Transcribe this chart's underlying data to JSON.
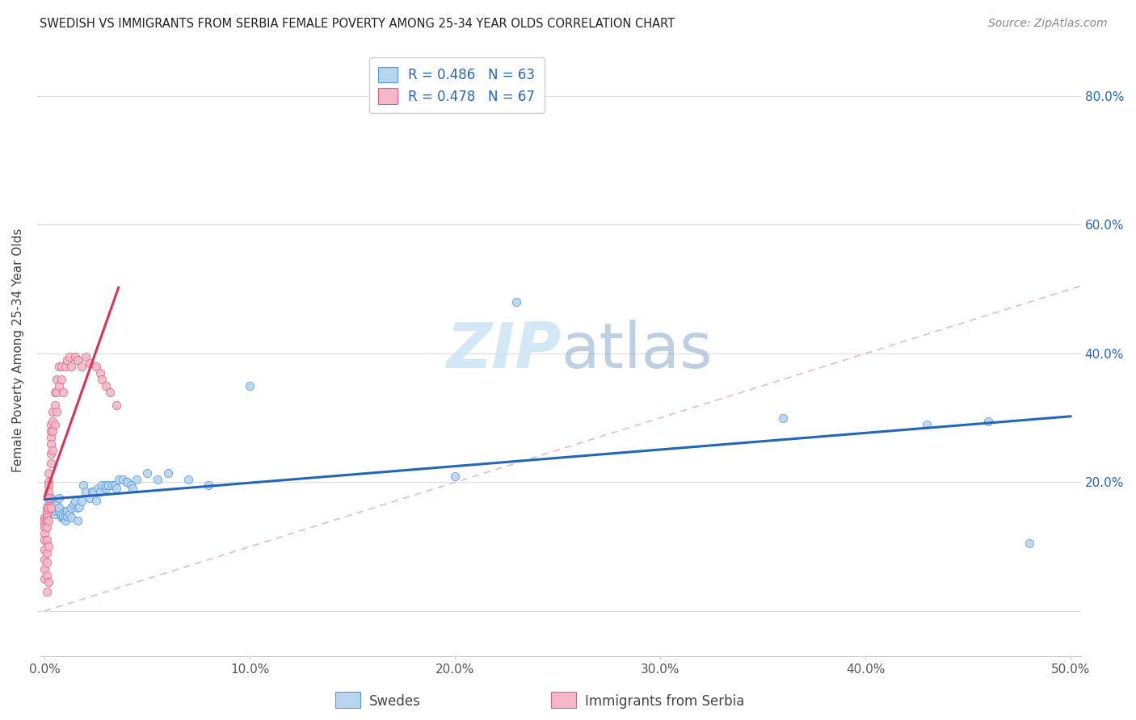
{
  "title": "SWEDISH VS IMMIGRANTS FROM SERBIA FEMALE POVERTY AMONG 25-34 YEAR OLDS CORRELATION CHART",
  "source": "Source: ZipAtlas.com",
  "ylabel": "Female Poverty Among 25-34 Year Olds",
  "xmin": -0.002,
  "xmax": 0.505,
  "ymin": -0.07,
  "ymax": 0.88,
  "xticks": [
    0.0,
    0.1,
    0.2,
    0.3,
    0.4,
    0.5
  ],
  "xticklabels": [
    "0.0%",
    "10.0%",
    "20.0%",
    "30.0%",
    "40.0%",
    "50.0%"
  ],
  "yticks": [
    0.0,
    0.2,
    0.4,
    0.6,
    0.8
  ],
  "yticklabels": [
    "",
    "20.0%",
    "40.0%",
    "60.0%",
    "80.0%"
  ],
  "legend_R_blue": "R = 0.486",
  "legend_N_blue": "N = 63",
  "legend_R_pink": "R = 0.478",
  "legend_N_pink": "N = 67",
  "blue_scatter_color": "#b8d4ee",
  "blue_edge_color": "#5599dd",
  "pink_scatter_color": "#f5b8c8",
  "pink_edge_color": "#e06080",
  "trend_blue_color": "#2266bb",
  "trend_pink_color": "#dd3355",
  "diag_color": "#e8b8c8",
  "watermark_color": "#cce4f5",
  "swedes_label": "Swedes",
  "immigrants_label": "Immigrants from Serbia",
  "blue_x": [
    0.002,
    0.003,
    0.003,
    0.004,
    0.005,
    0.005,
    0.006,
    0.006,
    0.007,
    0.007,
    0.007,
    0.008,
    0.008,
    0.009,
    0.009,
    0.01,
    0.01,
    0.01,
    0.011,
    0.011,
    0.012,
    0.013,
    0.013,
    0.014,
    0.015,
    0.016,
    0.016,
    0.017,
    0.018,
    0.019,
    0.02,
    0.022,
    0.023,
    0.024,
    0.025,
    0.026,
    0.027,
    0.028,
    0.03,
    0.03,
    0.031,
    0.033,
    0.034,
    0.035,
    0.036,
    0.038,
    0.04,
    0.04,
    0.042,
    0.043,
    0.045,
    0.05,
    0.055,
    0.06,
    0.07,
    0.08,
    0.1,
    0.2,
    0.23,
    0.36,
    0.43,
    0.46,
    0.48
  ],
  "blue_y": [
    0.165,
    0.17,
    0.175,
    0.155,
    0.15,
    0.16,
    0.155,
    0.165,
    0.155,
    0.16,
    0.175,
    0.145,
    0.15,
    0.145,
    0.148,
    0.14,
    0.148,
    0.155,
    0.148,
    0.155,
    0.15,
    0.145,
    0.16,
    0.165,
    0.17,
    0.16,
    0.14,
    0.162,
    0.17,
    0.195,
    0.185,
    0.175,
    0.185,
    0.185,
    0.172,
    0.19,
    0.185,
    0.195,
    0.19,
    0.195,
    0.195,
    0.195,
    0.195,
    0.19,
    0.205,
    0.205,
    0.2,
    0.2,
    0.195,
    0.19,
    0.205,
    0.215,
    0.205,
    0.215,
    0.205,
    0.195,
    0.35,
    0.21,
    0.48,
    0.3,
    0.29,
    0.295,
    0.105
  ],
  "pink_x": [
    0.0,
    0.0,
    0.0,
    0.0,
    0.0,
    0.0,
    0.0,
    0.0,
    0.0,
    0.0,
    0.001,
    0.001,
    0.001,
    0.001,
    0.001,
    0.001,
    0.001,
    0.001,
    0.001,
    0.001,
    0.001,
    0.002,
    0.002,
    0.002,
    0.002,
    0.002,
    0.002,
    0.002,
    0.002,
    0.002,
    0.003,
    0.003,
    0.003,
    0.003,
    0.003,
    0.003,
    0.003,
    0.004,
    0.004,
    0.004,
    0.004,
    0.005,
    0.005,
    0.005,
    0.006,
    0.006,
    0.006,
    0.007,
    0.007,
    0.008,
    0.008,
    0.009,
    0.01,
    0.011,
    0.012,
    0.013,
    0.015,
    0.016,
    0.018,
    0.02,
    0.022,
    0.025,
    0.027,
    0.028,
    0.03,
    0.032,
    0.035
  ],
  "pink_y": [
    0.145,
    0.14,
    0.135,
    0.13,
    0.12,
    0.11,
    0.095,
    0.08,
    0.065,
    0.05,
    0.16,
    0.155,
    0.15,
    0.145,
    0.14,
    0.13,
    0.11,
    0.09,
    0.075,
    0.055,
    0.03,
    0.215,
    0.2,
    0.195,
    0.185,
    0.175,
    0.16,
    0.14,
    0.1,
    0.045,
    0.29,
    0.28,
    0.27,
    0.26,
    0.245,
    0.23,
    0.16,
    0.31,
    0.295,
    0.28,
    0.25,
    0.34,
    0.32,
    0.29,
    0.36,
    0.34,
    0.31,
    0.38,
    0.35,
    0.38,
    0.36,
    0.34,
    0.38,
    0.39,
    0.395,
    0.38,
    0.395,
    0.39,
    0.38,
    0.395,
    0.385,
    0.38,
    0.37,
    0.36,
    0.35,
    0.34,
    0.32
  ]
}
